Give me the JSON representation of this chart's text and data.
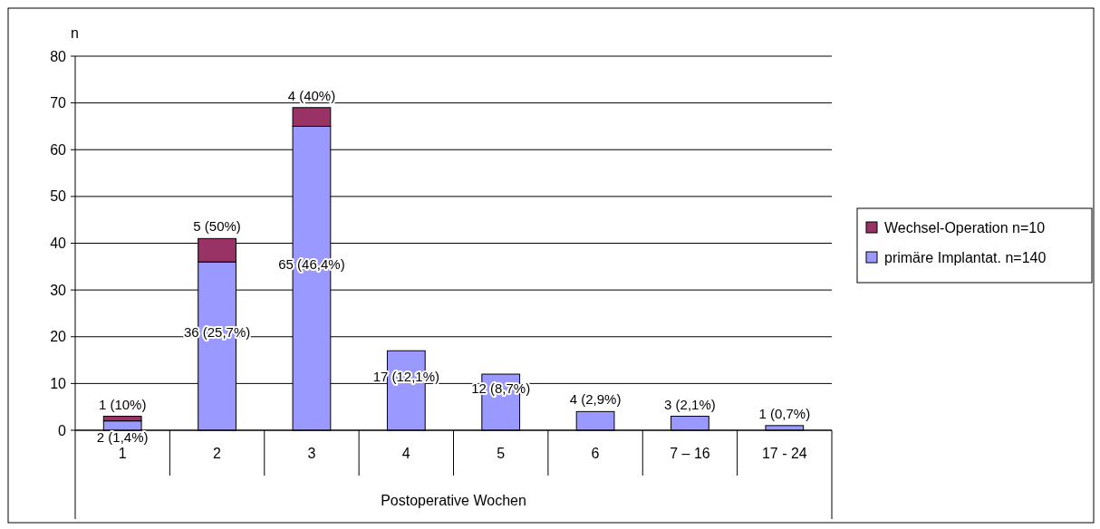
{
  "chart_data": {
    "type": "bar",
    "stacked": true,
    "ylabel": "n",
    "xlabel": "Postoperative Wochen",
    "categories": [
      "1",
      "2",
      "3",
      "4",
      "5",
      "6",
      "7 – 16",
      "17 - 24"
    ],
    "series": [
      {
        "name": "primäre Implantat. n=140",
        "color": "#9999ff",
        "values": [
          2,
          36,
          65,
          17,
          12,
          4,
          3,
          1
        ],
        "value_labels": [
          "2 (1,4%)",
          "36 (25,7%)",
          "65 (46,4%)",
          "17 (12,1%)",
          "12 (8,7%)",
          "4 (2,9%)",
          "3 (2,1%)",
          "1 (0,7%)"
        ]
      },
      {
        "name": "Wechsel-Operation n=10",
        "color": "#993366",
        "values": [
          1,
          5,
          4,
          null,
          null,
          null,
          null,
          null
        ],
        "value_labels": [
          "1 (10%)",
          "5 (50%)",
          "4 (40%)",
          null,
          null,
          null,
          null,
          null
        ]
      }
    ],
    "ylim": [
      0,
      80
    ],
    "yticks": [
      0,
      10,
      20,
      30,
      40,
      50,
      60,
      70,
      80
    ],
    "grid": "y",
    "legend": "right"
  }
}
